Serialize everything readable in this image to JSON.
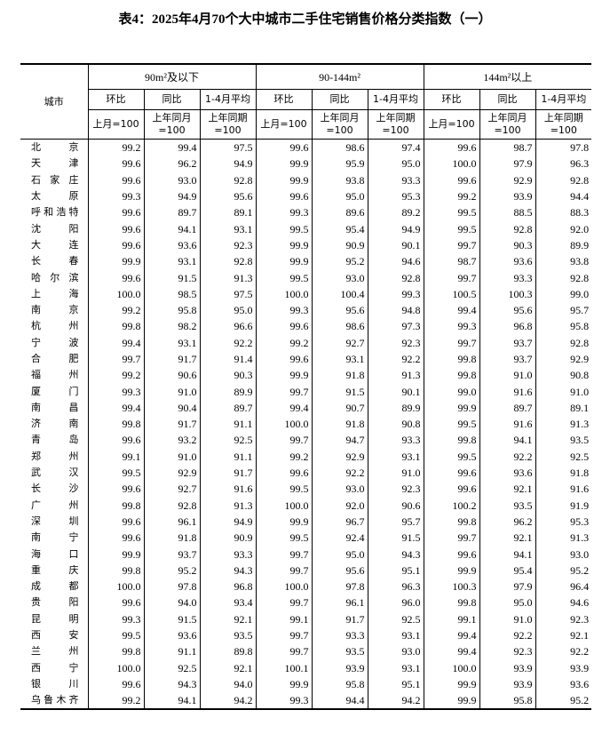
{
  "title": "表4：2025年4月70个大中城市二手住宅销售价格分类指数（一）",
  "header": {
    "city": "城市",
    "groups": [
      "90m²及以下",
      "90-144m²",
      "144m²以上"
    ],
    "sub": [
      "环比",
      "同比",
      "1-4月平均"
    ],
    "base": [
      "上月=100",
      "上年同月=100",
      "上年同期=100"
    ]
  },
  "rows": [
    [
      "北京",
      99.2,
      99.4,
      97.5,
      99.6,
      98.6,
      97.4,
      99.6,
      98.7,
      97.8
    ],
    [
      "天津",
      99.6,
      96.2,
      94.9,
      99.9,
      95.9,
      95.0,
      100.0,
      97.9,
      96.3
    ],
    [
      "石家庄",
      99.6,
      93.0,
      92.8,
      99.9,
      93.8,
      93.3,
      99.6,
      92.9,
      92.8
    ],
    [
      "太原",
      99.3,
      94.9,
      95.6,
      99.6,
      95.0,
      95.3,
      99.2,
      93.9,
      94.4
    ],
    [
      "呼和浩特",
      99.6,
      89.7,
      89.1,
      99.3,
      89.6,
      89.2,
      99.5,
      88.5,
      88.3
    ],
    [
      "沈阳",
      99.6,
      94.1,
      93.1,
      99.5,
      95.4,
      94.9,
      99.5,
      92.8,
      92.0
    ],
    [
      "大连",
      99.6,
      93.6,
      92.3,
      99.9,
      90.9,
      90.1,
      99.7,
      90.3,
      89.9
    ],
    [
      "长春",
      99.9,
      93.1,
      92.8,
      99.9,
      95.2,
      94.6,
      98.7,
      93.6,
      93.8
    ],
    [
      "哈尔滨",
      99.6,
      91.5,
      91.3,
      99.5,
      93.0,
      92.8,
      99.7,
      93.3,
      92.8
    ],
    [
      "上海",
      100.0,
      98.5,
      97.5,
      100.0,
      100.4,
      99.3,
      100.5,
      100.3,
      99.0
    ],
    [
      "南京",
      99.2,
      95.8,
      95.0,
      99.3,
      95.6,
      94.8,
      99.4,
      95.6,
      95.7
    ],
    [
      "杭州",
      99.8,
      98.2,
      96.6,
      99.6,
      98.6,
      97.3,
      99.3,
      96.8,
      95.8
    ],
    [
      "宁波",
      99.4,
      93.1,
      92.2,
      99.2,
      92.7,
      92.3,
      99.7,
      93.7,
      92.8
    ],
    [
      "合肥",
      99.7,
      91.7,
      91.4,
      99.6,
      93.1,
      92.2,
      99.8,
      93.7,
      92.9
    ],
    [
      "福州",
      99.2,
      90.6,
      90.3,
      99.9,
      91.8,
      91.3,
      99.8,
      91.0,
      90.8
    ],
    [
      "厦门",
      99.3,
      91.0,
      89.9,
      99.7,
      91.5,
      90.1,
      99.0,
      91.6,
      91.0
    ],
    [
      "南昌",
      99.4,
      90.4,
      89.7,
      99.4,
      90.7,
      89.9,
      99.9,
      89.7,
      89.1
    ],
    [
      "济南",
      99.8,
      91.7,
      91.1,
      100.0,
      91.8,
      90.8,
      99.5,
      91.6,
      91.3
    ],
    [
      "青岛",
      99.6,
      93.2,
      92.5,
      99.7,
      94.7,
      93.3,
      99.8,
      94.1,
      93.5
    ],
    [
      "郑州",
      99.1,
      91.0,
      91.1,
      99.2,
      92.9,
      93.1,
      99.5,
      92.2,
      92.5
    ],
    [
      "武汉",
      99.5,
      92.9,
      91.7,
      99.6,
      92.2,
      91.0,
      99.6,
      93.6,
      91.8
    ],
    [
      "长沙",
      99.6,
      92.7,
      91.6,
      99.5,
      93.0,
      92.3,
      99.6,
      92.1,
      91.6
    ],
    [
      "广州",
      99.8,
      92.8,
      91.3,
      100.0,
      92.0,
      90.6,
      100.2,
      93.5,
      91.9
    ],
    [
      "深圳",
      99.6,
      96.1,
      94.9,
      99.9,
      96.7,
      95.7,
      99.8,
      96.2,
      95.3
    ],
    [
      "南宁",
      99.6,
      91.8,
      90.9,
      99.5,
      92.4,
      91.5,
      99.7,
      92.1,
      91.3
    ],
    [
      "海口",
      99.9,
      93.7,
      93.3,
      99.7,
      95.0,
      94.3,
      99.6,
      94.1,
      93.0
    ],
    [
      "重庆",
      99.8,
      95.2,
      94.3,
      99.7,
      95.6,
      95.1,
      99.9,
      95.4,
      95.2
    ],
    [
      "成都",
      100.0,
      97.8,
      96.8,
      100.0,
      97.8,
      96.3,
      100.3,
      97.9,
      96.4
    ],
    [
      "贵阳",
      99.6,
      94.0,
      93.4,
      99.7,
      96.1,
      96.0,
      99.8,
      95.0,
      94.6
    ],
    [
      "昆明",
      99.3,
      91.5,
      92.1,
      99.1,
      91.7,
      92.5,
      99.1,
      91.0,
      92.3
    ],
    [
      "西安",
      99.5,
      93.6,
      93.5,
      99.7,
      93.3,
      93.1,
      99.4,
      92.2,
      92.1
    ],
    [
      "兰州",
      99.8,
      91.1,
      89.8,
      99.7,
      93.5,
      93.0,
      99.4,
      92.3,
      92.2
    ],
    [
      "西宁",
      100.0,
      92.5,
      92.1,
      100.1,
      93.9,
      93.1,
      100.0,
      93.9,
      93.9
    ],
    [
      "银川",
      99.6,
      94.3,
      94.0,
      99.9,
      95.8,
      95.1,
      99.9,
      93.9,
      93.6
    ],
    [
      "乌鲁木齐",
      99.2,
      94.1,
      94.2,
      99.3,
      94.4,
      94.2,
      99.9,
      95.8,
      95.2
    ]
  ]
}
